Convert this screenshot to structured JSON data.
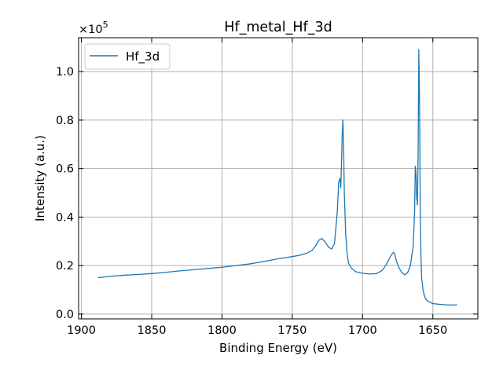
{
  "chart_data": {
    "type": "line",
    "title": "Hf_metal_Hf_3d",
    "xlabel": "Binding Energy (eV)",
    "ylabel": "Intensity (a.u.)",
    "y_multiplier_label": "×10",
    "y_multiplier_exponent": "5",
    "xlim": [
      1902,
      1618
    ],
    "ylim": [
      -0.02,
      1.14
    ],
    "x_reversed": true,
    "grid": true,
    "legend_position": "top-left",
    "xticks": [
      1900,
      1850,
      1800,
      1750,
      1700,
      1650
    ],
    "xtick_labels": [
      "1900",
      "1850",
      "1800",
      "1750",
      "1700",
      "1650"
    ],
    "yticks": [
      0.0,
      0.2,
      0.4,
      0.6,
      0.8,
      1.0
    ],
    "ytick_labels": [
      "0.0",
      "0.2",
      "0.4",
      "0.6",
      "0.8",
      "1.0"
    ],
    "series": [
      {
        "name": "Hf_3d",
        "color": "#1f77b4",
        "x": [
          1888,
          1880,
          1870,
          1860,
          1850,
          1840,
          1830,
          1820,
          1810,
          1800,
          1790,
          1780,
          1770,
          1760,
          1750,
          1745,
          1740,
          1736,
          1733,
          1731,
          1729,
          1727,
          1724,
          1722,
          1720,
          1718,
          1717,
          1716,
          1715.5,
          1715,
          1714.5,
          1714,
          1713.5,
          1713,
          1712,
          1711,
          1710,
          1708,
          1705,
          1700,
          1695,
          1690,
          1686,
          1683,
          1680,
          1678,
          1677,
          1676,
          1674,
          1672,
          1670,
          1668,
          1666,
          1664,
          1663,
          1662.5,
          1662,
          1661.5,
          1661,
          1660.5,
          1660,
          1659.5,
          1659,
          1658.5,
          1658,
          1657,
          1656,
          1655,
          1654,
          1652,
          1650,
          1645,
          1640,
          1635,
          1633
        ],
        "y": [
          0.15,
          0.155,
          0.16,
          0.163,
          0.167,
          0.172,
          0.178,
          0.183,
          0.188,
          0.193,
          0.2,
          0.207,
          0.217,
          0.228,
          0.237,
          0.242,
          0.25,
          0.262,
          0.285,
          0.305,
          0.312,
          0.3,
          0.275,
          0.268,
          0.29,
          0.42,
          0.545,
          0.56,
          0.52,
          0.62,
          0.74,
          0.8,
          0.7,
          0.5,
          0.33,
          0.25,
          0.21,
          0.19,
          0.175,
          0.168,
          0.165,
          0.167,
          0.18,
          0.205,
          0.24,
          0.255,
          0.245,
          0.22,
          0.19,
          0.17,
          0.162,
          0.17,
          0.2,
          0.28,
          0.42,
          0.61,
          0.58,
          0.48,
          0.45,
          0.65,
          1.09,
          0.9,
          0.45,
          0.25,
          0.15,
          0.1,
          0.075,
          0.062,
          0.055,
          0.048,
          0.043,
          0.04,
          0.038,
          0.037,
          0.038
        ]
      }
    ]
  }
}
